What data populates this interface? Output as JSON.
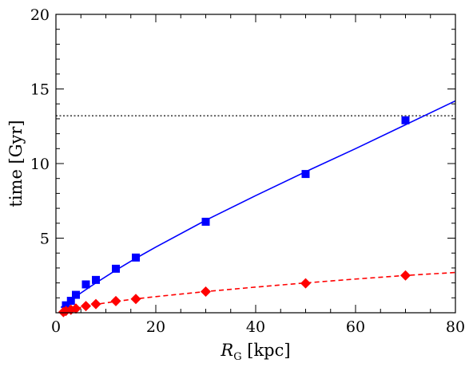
{
  "chart_data": {
    "type": "scatter",
    "xlabel": {
      "main": "R",
      "sub": "G",
      "rest": " [kpc]"
    },
    "ylabel": "time [Gyr]",
    "xlim": [
      0,
      80
    ],
    "ylim": [
      0,
      20
    ],
    "xticks": [
      0,
      20,
      40,
      60,
      80
    ],
    "yticks": [
      5,
      10,
      15,
      20
    ],
    "x_minor_step": 5,
    "y_minor_step": 1,
    "reference_line": {
      "y": 13.2,
      "color": "#606060",
      "style": "dotted"
    },
    "series": [
      {
        "color": "#0000ff",
        "marker": "square",
        "points": [
          [
            2,
            0.5
          ],
          [
            3,
            0.8
          ],
          [
            4,
            1.2
          ],
          [
            6,
            1.9
          ],
          [
            8,
            2.2
          ],
          [
            12,
            2.95
          ],
          [
            16,
            3.7
          ],
          [
            30,
            6.1
          ],
          [
            50,
            9.3
          ],
          [
            70,
            12.9
          ]
        ],
        "fit": {
          "style": "solid",
          "points": [
            [
              1,
              0.35
            ],
            [
              2,
              0.6
            ],
            [
              3,
              0.85
            ],
            [
              4,
              1.1
            ],
            [
              6,
              1.55
            ],
            [
              8,
              2.0
            ],
            [
              12,
              2.85
            ],
            [
              16,
              3.65
            ],
            [
              20,
              4.4
            ],
            [
              30,
              6.2
            ],
            [
              40,
              7.85
            ],
            [
              50,
              9.45
            ],
            [
              60,
              11.0
            ],
            [
              70,
              12.6
            ],
            [
              80,
              14.2
            ]
          ]
        }
      },
      {
        "color": "#ff0000",
        "marker": "diamond",
        "points": [
          [
            1.5,
            0.05
          ],
          [
            2,
            0.12
          ],
          [
            3,
            0.2
          ],
          [
            4,
            0.28
          ],
          [
            6,
            0.45
          ],
          [
            8,
            0.58
          ],
          [
            12,
            0.78
          ],
          [
            16,
            0.92
          ],
          [
            30,
            1.42
          ],
          [
            50,
            1.97
          ],
          [
            70,
            2.5
          ]
        ],
        "fit": {
          "style": "dashed",
          "points": [
            [
              1,
              0.02
            ],
            [
              2,
              0.12
            ],
            [
              3,
              0.2
            ],
            [
              4,
              0.28
            ],
            [
              6,
              0.43
            ],
            [
              8,
              0.56
            ],
            [
              12,
              0.76
            ],
            [
              16,
              0.93
            ],
            [
              20,
              1.08
            ],
            [
              30,
              1.42
            ],
            [
              40,
              1.72
            ],
            [
              50,
              2.0
            ],
            [
              60,
              2.26
            ],
            [
              70,
              2.5
            ],
            [
              80,
              2.7
            ]
          ]
        }
      }
    ]
  }
}
